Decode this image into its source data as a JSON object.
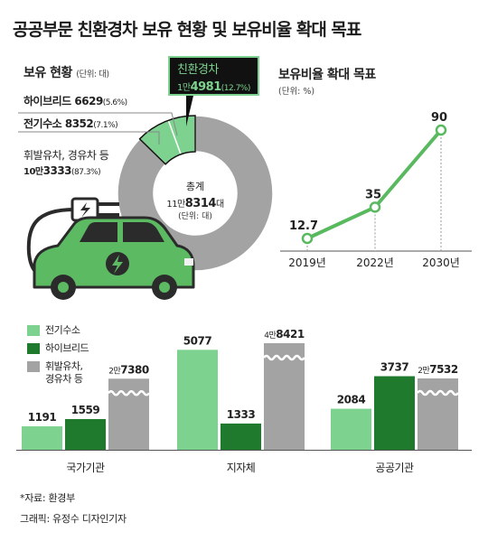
{
  "title": "공공부문 친환경차 보유 현황 및 보유비율 확대 목표",
  "holdings": {
    "title": "보유 현황",
    "unit": "(단위: 대)",
    "eco_label": "친환경차",
    "eco_value_prefix": "1만",
    "eco_value_rest": "4981",
    "eco_pct": "(12.7%)",
    "hybrid_name": "하이브리드",
    "hybrid_value": "6629",
    "hybrid_pct": "(5.6%)",
    "hydrogen_name": "전기수소",
    "hydrogen_value": "8352",
    "hydrogen_pct": "(7.1%)",
    "fuel_name": "휘발유차, 경유차 등",
    "fuel_value_prefix": "10만",
    "fuel_value_rest": "3333",
    "fuel_pct": "(87.3%)",
    "total_label": "총계",
    "total_prefix": "11만",
    "total_rest": "8314",
    "total_suffix": "대",
    "total_unit": "(단위: 대)"
  },
  "ratio": {
    "title": "보유비율 확대 목표",
    "unit": "(단위: %)"
  },
  "bars_legend": [
    "전기수소",
    "하이브리드",
    "휘발유차,",
    "경유차 등"
  ],
  "footer": {
    "source": "*자료: 환경부",
    "credit": "그래픽: 유정수 디자인기자"
  },
  "colors": {
    "light_green": "#7dd28f",
    "dark_green": "#1f7a2e",
    "gray": "#a3a3a3",
    "line_green": "#58b95f"
  },
  "chart_data": [
    {
      "type": "pie",
      "labels": [
        "전기수소",
        "하이브리드",
        "휘발유차, 경유차 등"
      ],
      "values": [
        8352,
        6629,
        103333
      ],
      "percent": [
        7.1,
        5.6,
        87.3
      ]
    },
    {
      "type": "line",
      "x": [
        "2019년",
        "2022년",
        "2030년"
      ],
      "values": [
        12.7,
        35,
        90
      ],
      "value_labels": [
        "12.7",
        "35",
        "90"
      ]
    },
    {
      "type": "bar",
      "categories": [
        "국가기관",
        "지자체",
        "공공기관"
      ],
      "series": [
        {
          "name": "전기수소",
          "values": [
            1191,
            5077,
            2084
          ],
          "labels": [
            "1191",
            "5077",
            "2084"
          ]
        },
        {
          "name": "하이브리드",
          "values": [
            1559,
            1333,
            3737
          ],
          "labels": [
            "1559",
            "1333",
            "3737"
          ]
        },
        {
          "name": "휘발유차, 경유차 등",
          "values": [
            27380,
            48421,
            27532
          ],
          "labels": [
            "2만7380",
            "4만8421",
            "2만7532"
          ]
        }
      ],
      "broken_axis": true
    }
  ]
}
